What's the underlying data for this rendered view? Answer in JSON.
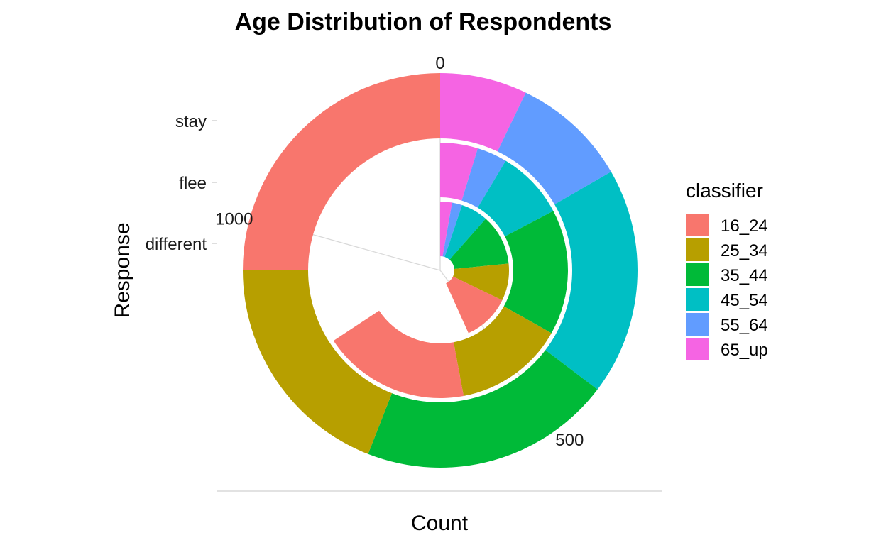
{
  "chart_data": {
    "type": "pie",
    "variant": "multi-ring (coord_polar stacked bar)",
    "title": "Age Distribution of Respondents",
    "xlabel": "Count",
    "ylabel": "Response",
    "categories": [
      "different",
      "flee",
      "stay"
    ],
    "category_ticks": [
      "stay",
      "flee",
      "different"
    ],
    "count_ticks": [
      0,
      500,
      1000
    ],
    "count_axis_max": 1260,
    "legend": {
      "title": "classifier",
      "position": "right",
      "entries": [
        "16_24",
        "25_34",
        "35_44",
        "45_54",
        "55_64",
        "65_up"
      ]
    },
    "colors": {
      "16_24": "#F8766D",
      "25_34": "#B79F00",
      "35_44": "#00BA38",
      "45_54": "#00BFC4",
      "55_64": "#619CFF",
      "65_up": "#F564E3"
    },
    "series": [
      {
        "name": "65_up",
        "values": [
          35,
          60,
          90
        ]
      },
      {
        "name": "55_64",
        "values": [
          30,
          48,
          120
        ]
      },
      {
        "name": "45_54",
        "values": [
          80,
          110,
          235
        ]
      },
      {
        "name": "35_44",
        "values": [
          150,
          200,
          260
        ]
      },
      {
        "name": "25_34",
        "values": [
          110,
          175,
          240
        ]
      },
      {
        "name": "16_24",
        "values": [
          140,
          235,
          315
        ]
      }
    ],
    "grid": true
  }
}
